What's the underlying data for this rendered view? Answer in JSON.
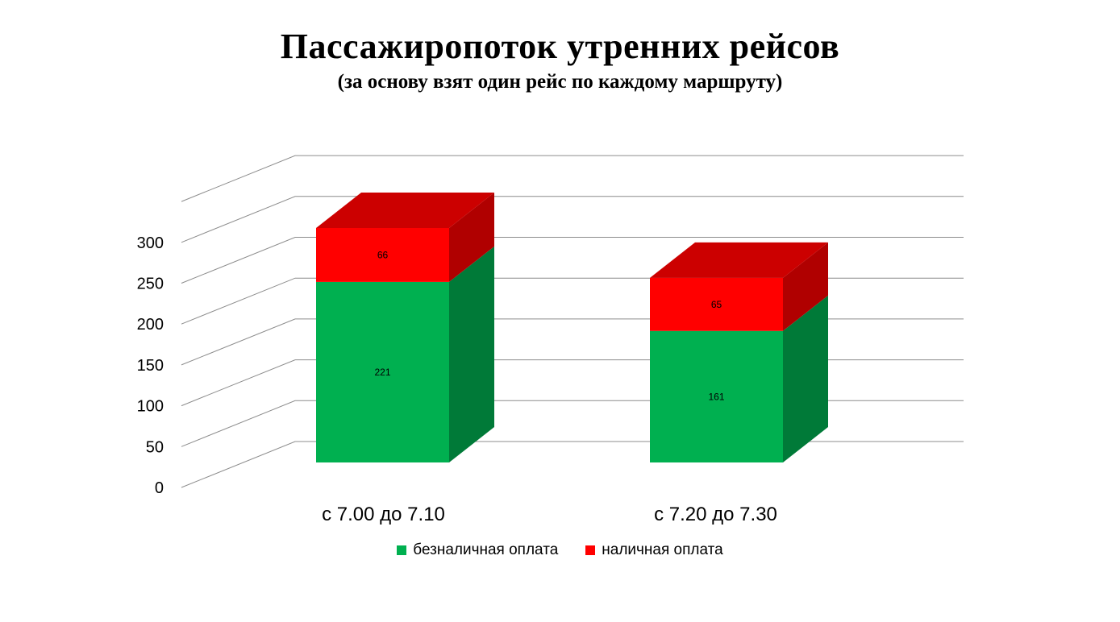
{
  "chart_data": {
    "type": "bar",
    "stacked": true,
    "three_d": true,
    "title": "Пассажиропоток утренних рейсов",
    "subtitle": "(за основу взят один рейс по каждому маршруту)",
    "categories": [
      "с 7.00 до 7.10",
      "с 7.20 до 7.30"
    ],
    "series": [
      {
        "name": "безналичная оплата",
        "values": [
          221,
          161
        ],
        "color": "#00B050",
        "side_color": "#007A38",
        "top_color": "#00B050"
      },
      {
        "name": "наличная оплата",
        "values": [
          66,
          65
        ],
        "color": "#FF0000",
        "side_color": "#B00000",
        "top_color": "#CC0000"
      }
    ],
    "ylim": [
      0,
      300
    ],
    "yticks": [
      0,
      50,
      100,
      150,
      200,
      250,
      300
    ],
    "grid": true,
    "legend": "bottom"
  }
}
